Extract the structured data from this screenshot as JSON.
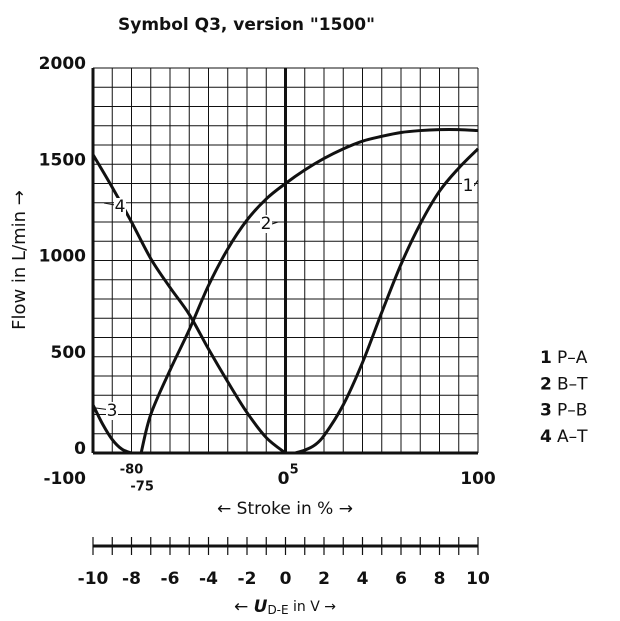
{
  "chart_data": {
    "type": "line",
    "title": "Symbol Q3, version \"1500\"",
    "ylabel": "Flow in L/min →",
    "xlabel": "← Stroke in % →",
    "xlim": [
      -100,
      100
    ],
    "ylim": [
      0,
      2000
    ],
    "xticks": [
      -100,
      -80,
      -75,
      0,
      5,
      100
    ],
    "yticks": [
      0,
      500,
      1000,
      1500,
      2000
    ],
    "xgrid": [
      -100,
      -90,
      -80,
      -70,
      -60,
      -50,
      -40,
      -30,
      -20,
      -10,
      0,
      10,
      20,
      30,
      40,
      50,
      60,
      70,
      80,
      90,
      100
    ],
    "ygrid": [
      0,
      100,
      200,
      300,
      400,
      500,
      600,
      700,
      800,
      900,
      1000,
      1100,
      1200,
      1300,
      1400,
      1500,
      1600,
      1700,
      1800,
      1900,
      2000
    ],
    "grid": true,
    "series": [
      {
        "label": "1",
        "name": "P–A",
        "color": "#111111",
        "x": [
          5,
          10,
          15,
          20,
          30,
          40,
          50,
          60,
          70,
          80,
          90,
          100
        ],
        "values": [
          0,
          15,
          40,
          90,
          250,
          470,
          730,
          980,
          1190,
          1360,
          1480,
          1580
        ]
      },
      {
        "label": "2",
        "name": "B–T",
        "color": "#111111",
        "x": [
          -75,
          -70,
          -60,
          -50,
          -40,
          -30,
          -20,
          -10,
          0,
          10,
          20,
          30,
          40,
          50,
          60,
          70,
          80,
          90,
          100
        ],
        "values": [
          0,
          200,
          430,
          640,
          870,
          1060,
          1210,
          1320,
          1400,
          1470,
          1530,
          1580,
          1620,
          1645,
          1665,
          1675,
          1680,
          1680,
          1675
        ]
      },
      {
        "label": "3",
        "name": "P–B",
        "color": "#111111",
        "x": [
          -100,
          -95,
          -90,
          -85,
          -80
        ],
        "values": [
          250,
          150,
          70,
          20,
          0
        ]
      },
      {
        "label": "4",
        "name": "A–T",
        "color": "#111111",
        "x": [
          -100,
          -90,
          -80,
          -70,
          -60,
          -50,
          -40,
          -30,
          -20,
          -10,
          0
        ],
        "values": [
          1550,
          1380,
          1200,
          1010,
          860,
          720,
          540,
          370,
          210,
          80,
          0
        ]
      }
    ],
    "voltage_axis": {
      "lim": [
        -10,
        10
      ],
      "ticks": [
        -10,
        -8,
        -6,
        -4,
        -2,
        0,
        2,
        4,
        6,
        8,
        10
      ],
      "minor_ticks": [
        -10,
        -9,
        -8,
        -7,
        -6,
        -5,
        -4,
        -3,
        -2,
        -1,
        0,
        1,
        2,
        3,
        4,
        5,
        6,
        7,
        8,
        9,
        10
      ],
      "label": {
        "prefix": "← ",
        "symbol": "U",
        "subscript": "D-E",
        "suffix": " in V →"
      }
    }
  }
}
